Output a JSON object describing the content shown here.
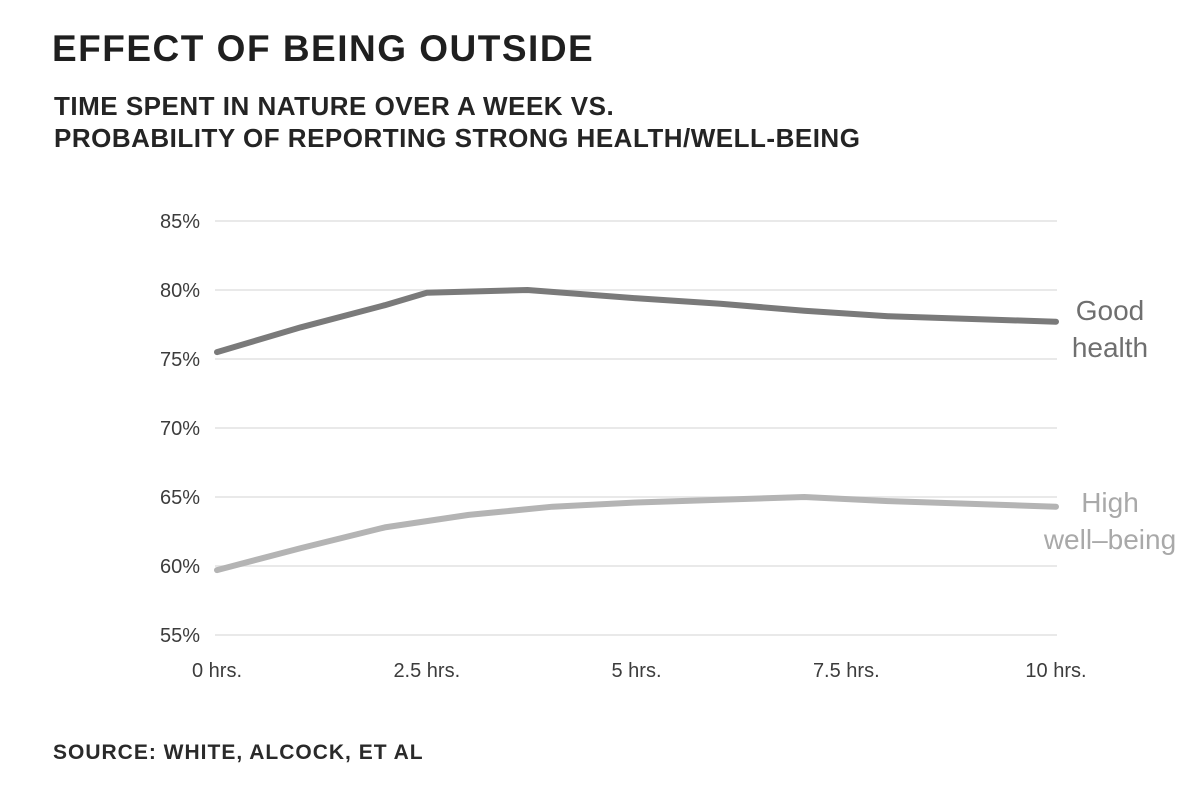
{
  "header": {
    "title": "EFFECT OF BEING OUTSIDE",
    "subtitle_line1": "TIME SPENT IN NATURE OVER A WEEK VS.",
    "subtitle_line2": "PROBABILITY OF REPORTING STRONG HEALTH/WELL-BEING"
  },
  "footer": {
    "source": "SOURCE: WHITE, ALCOCK, ET AL"
  },
  "colors": {
    "background": "#ffffff",
    "grid": "#e2e2e2",
    "title_text": "#1f1f1f",
    "tick_text": "#3c3c3c",
    "good_health_line": "#7a7a7a",
    "good_health_label": "#6f6f6f",
    "high_wellbeing_line": "#b4b4b4",
    "high_wellbeing_label": "#a9a9a9"
  },
  "chart_data": {
    "type": "line",
    "title": "EFFECT OF BEING OUTSIDE",
    "subtitle": "TIME SPENT IN NATURE OVER A WEEK VS. PROBABILITY OF REPORTING STRONG HEALTH/WELL-BEING",
    "source": "SOURCE: WHITE, ALCOCK, ET AL",
    "x_axis": {
      "unit": "hours per week",
      "range": [
        0,
        10
      ],
      "tick_values": [
        0,
        2.5,
        5,
        7.5,
        10
      ],
      "tick_labels": [
        "0 hrs.",
        "2.5 hrs.",
        "5 hrs.",
        "7.5 hrs.",
        "10 hrs."
      ]
    },
    "y_axis": {
      "unit": "percent probability",
      "range": [
        55,
        85
      ],
      "tick_values": [
        55,
        60,
        65,
        70,
        75,
        80,
        85
      ],
      "tick_labels": [
        "55%",
        "60%",
        "65%",
        "70%",
        "75%",
        "80%",
        "85%"
      ],
      "gridlines": true
    },
    "legend_position": "inline-right",
    "series": [
      {
        "name": "Good health",
        "label_lines": [
          "Good",
          "health"
        ],
        "color": "#7a7a7a",
        "points": [
          [
            0,
            75.5
          ],
          [
            1,
            77.3
          ],
          [
            2,
            78.9
          ],
          [
            2.5,
            79.8
          ],
          [
            3.7,
            80.0
          ],
          [
            5,
            79.4
          ],
          [
            6,
            79.0
          ],
          [
            7,
            78.5
          ],
          [
            8,
            78.1
          ],
          [
            9,
            77.9
          ],
          [
            10,
            77.7
          ]
        ]
      },
      {
        "name": "High well-being",
        "label_lines": [
          "High",
          "well–being"
        ],
        "color": "#b4b4b4",
        "points": [
          [
            0,
            59.7
          ],
          [
            1,
            61.3
          ],
          [
            2,
            62.8
          ],
          [
            3,
            63.7
          ],
          [
            4,
            64.3
          ],
          [
            5,
            64.6
          ],
          [
            6,
            64.8
          ],
          [
            7,
            65.0
          ],
          [
            8,
            64.7
          ],
          [
            9,
            64.5
          ],
          [
            10,
            64.3
          ]
        ]
      }
    ]
  }
}
